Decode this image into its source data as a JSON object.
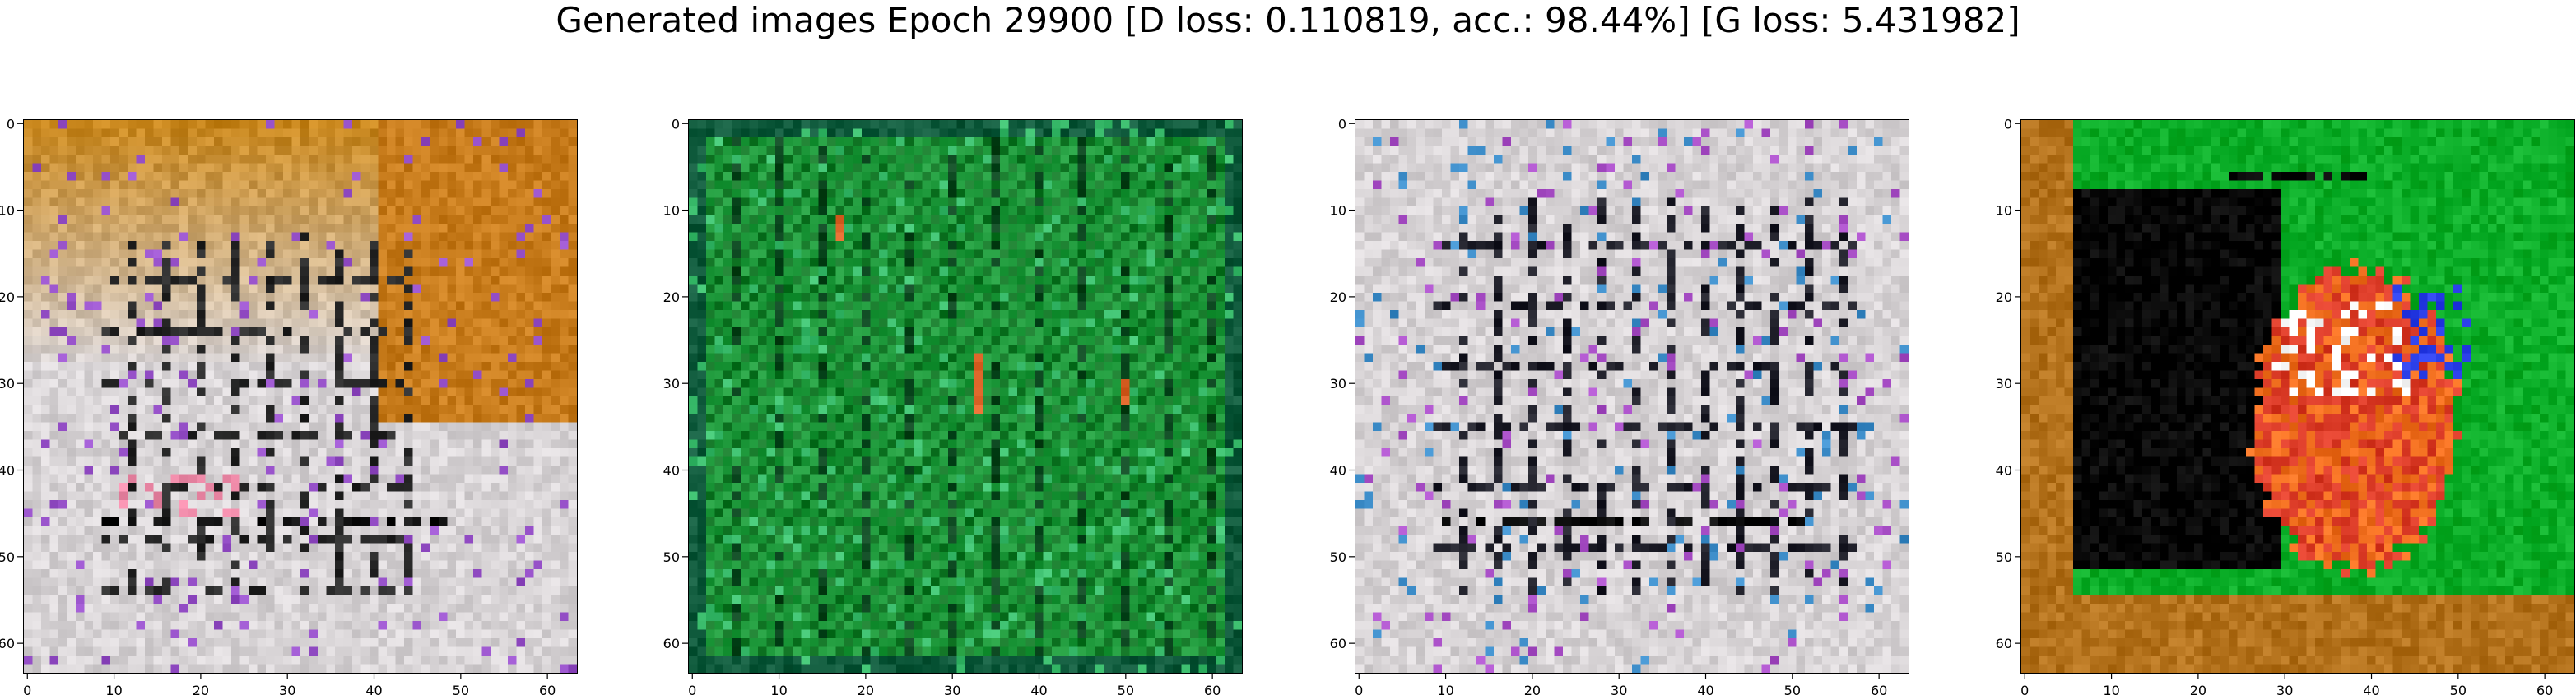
{
  "figure": {
    "title": "Generated images Epoch 29900 [D loss: 0.110819, acc.: 98.44%] [G loss: 5.431982]"
  },
  "panels": [
    {
      "id": "image-1",
      "palette": "orange-white",
      "description_hint": "building-like texture with orange top"
    },
    {
      "id": "image-2",
      "palette": "green",
      "description_hint": "green grid texture with red spots"
    },
    {
      "id": "image-3",
      "palette": "white-grey",
      "description_hint": "white building-like window grid"
    },
    {
      "id": "image-4",
      "palette": "green-black-orange",
      "description_hint": "dark rectangle with colorful blob on green"
    }
  ],
  "axes": {
    "x_ticks": [
      "0",
      "10",
      "20",
      "30",
      "40",
      "50",
      "60"
    ],
    "y_ticks": [
      "0",
      "10",
      "20",
      "30",
      "40",
      "50",
      "60"
    ],
    "range": [
      0,
      63
    ]
  },
  "colors": {
    "orange": "#c8861c",
    "green": "#1f9a3c",
    "white": "#d8d4d6",
    "black": "#050505"
  }
}
